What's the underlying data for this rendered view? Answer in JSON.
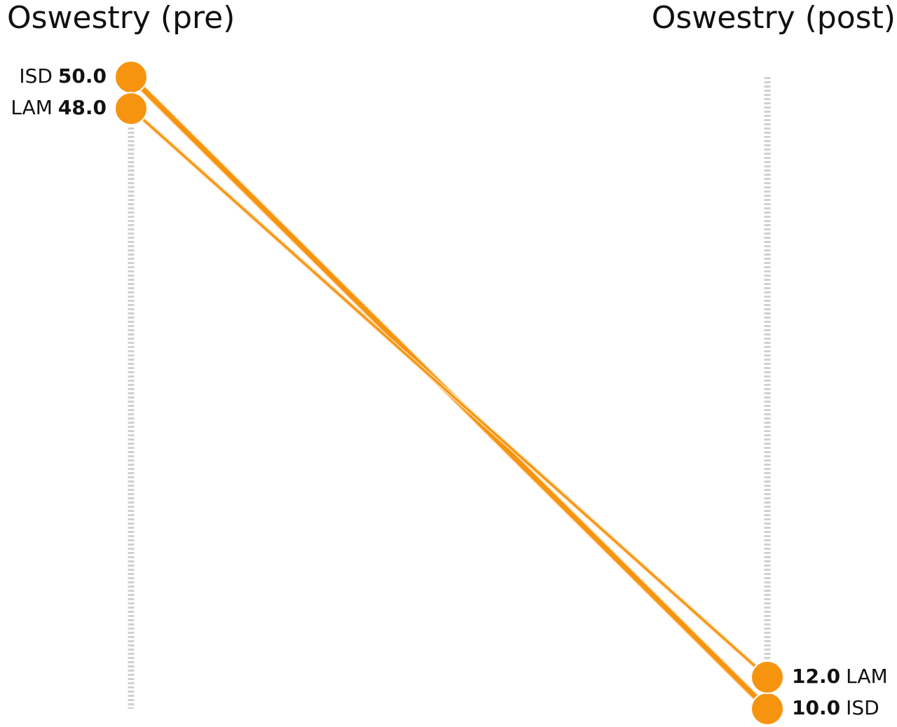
{
  "chart_data": {
    "type": "slope",
    "categories": [
      "Oswestry (pre)",
      "Oswestry (post)"
    ],
    "series": [
      {
        "name": "ISD",
        "color": "#f7940f",
        "values": [
          50.0,
          10.0
        ],
        "value_labels": [
          "50.0",
          "10.0"
        ]
      },
      {
        "name": "LAM",
        "color": "#f7940f",
        "values": [
          48.0,
          12.0
        ],
        "value_labels": [
          "48.0",
          "12.0"
        ]
      }
    ],
    "ylim": [
      10,
      50
    ]
  }
}
